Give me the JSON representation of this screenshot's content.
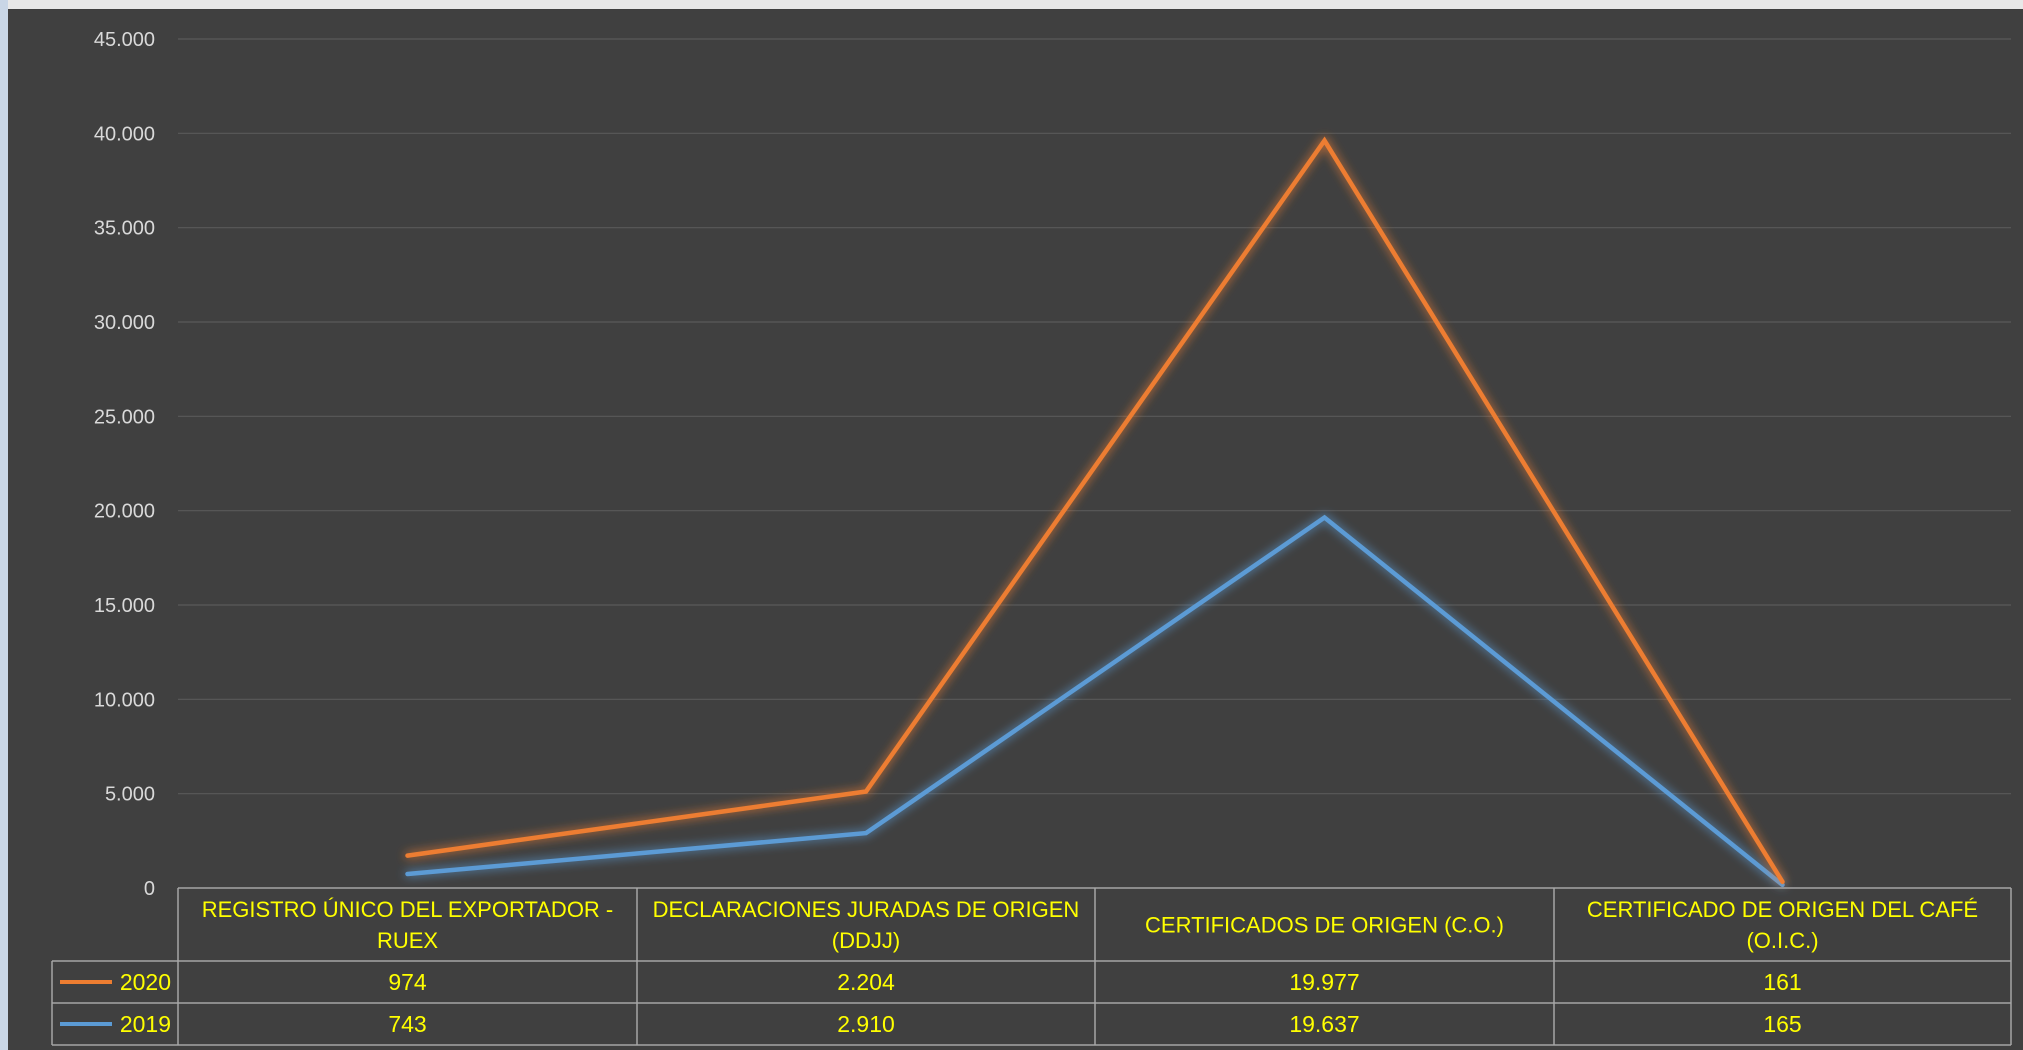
{
  "colors": {
    "background": "#404040",
    "gridline": "#595959",
    "table_border": "#a6a6a6",
    "tick_text": "#d9d9d9",
    "table_text": "#ffff00",
    "series_2020": "#ed7d31",
    "series_2019": "#5b9bd5"
  },
  "chart_data": {
    "type": "line",
    "title": "",
    "xlabel": "",
    "ylabel": "",
    "ylim": [
      0,
      45000
    ],
    "yticks": [
      0,
      5000,
      10000,
      15000,
      20000,
      25000,
      30000,
      35000,
      40000,
      45000
    ],
    "ytick_labels": [
      "0",
      "5.000",
      "10.000",
      "15.000",
      "20.000",
      "25.000",
      "30.000",
      "35.000",
      "40.000",
      "45.000"
    ],
    "grid": true,
    "legend_placement": "data-table",
    "stacked": true,
    "categories": [
      [
        "REGISTRO ÚNICO DEL EXPORTADOR -",
        "RUEX"
      ],
      [
        "DECLARACIONES JURADAS DE ORIGEN",
        "(DDJJ)"
      ],
      [
        "CERTIFICADOS DE ORIGEN (C.O.)"
      ],
      [
        "CERTIFICADO DE ORIGEN DEL CAFÉ",
        "(O.I.C.)"
      ]
    ],
    "series": [
      {
        "name": "2020",
        "color": "#ed7d31",
        "values": [
          974,
          2204,
          19977,
          161
        ],
        "labels": [
          "974",
          "2.204",
          "19.977",
          "161"
        ]
      },
      {
        "name": "2019",
        "color": "#5b9bd5",
        "values": [
          743,
          2910,
          19637,
          165
        ],
        "labels": [
          "743",
          "2.910",
          "19.637",
          "165"
        ]
      }
    ]
  }
}
